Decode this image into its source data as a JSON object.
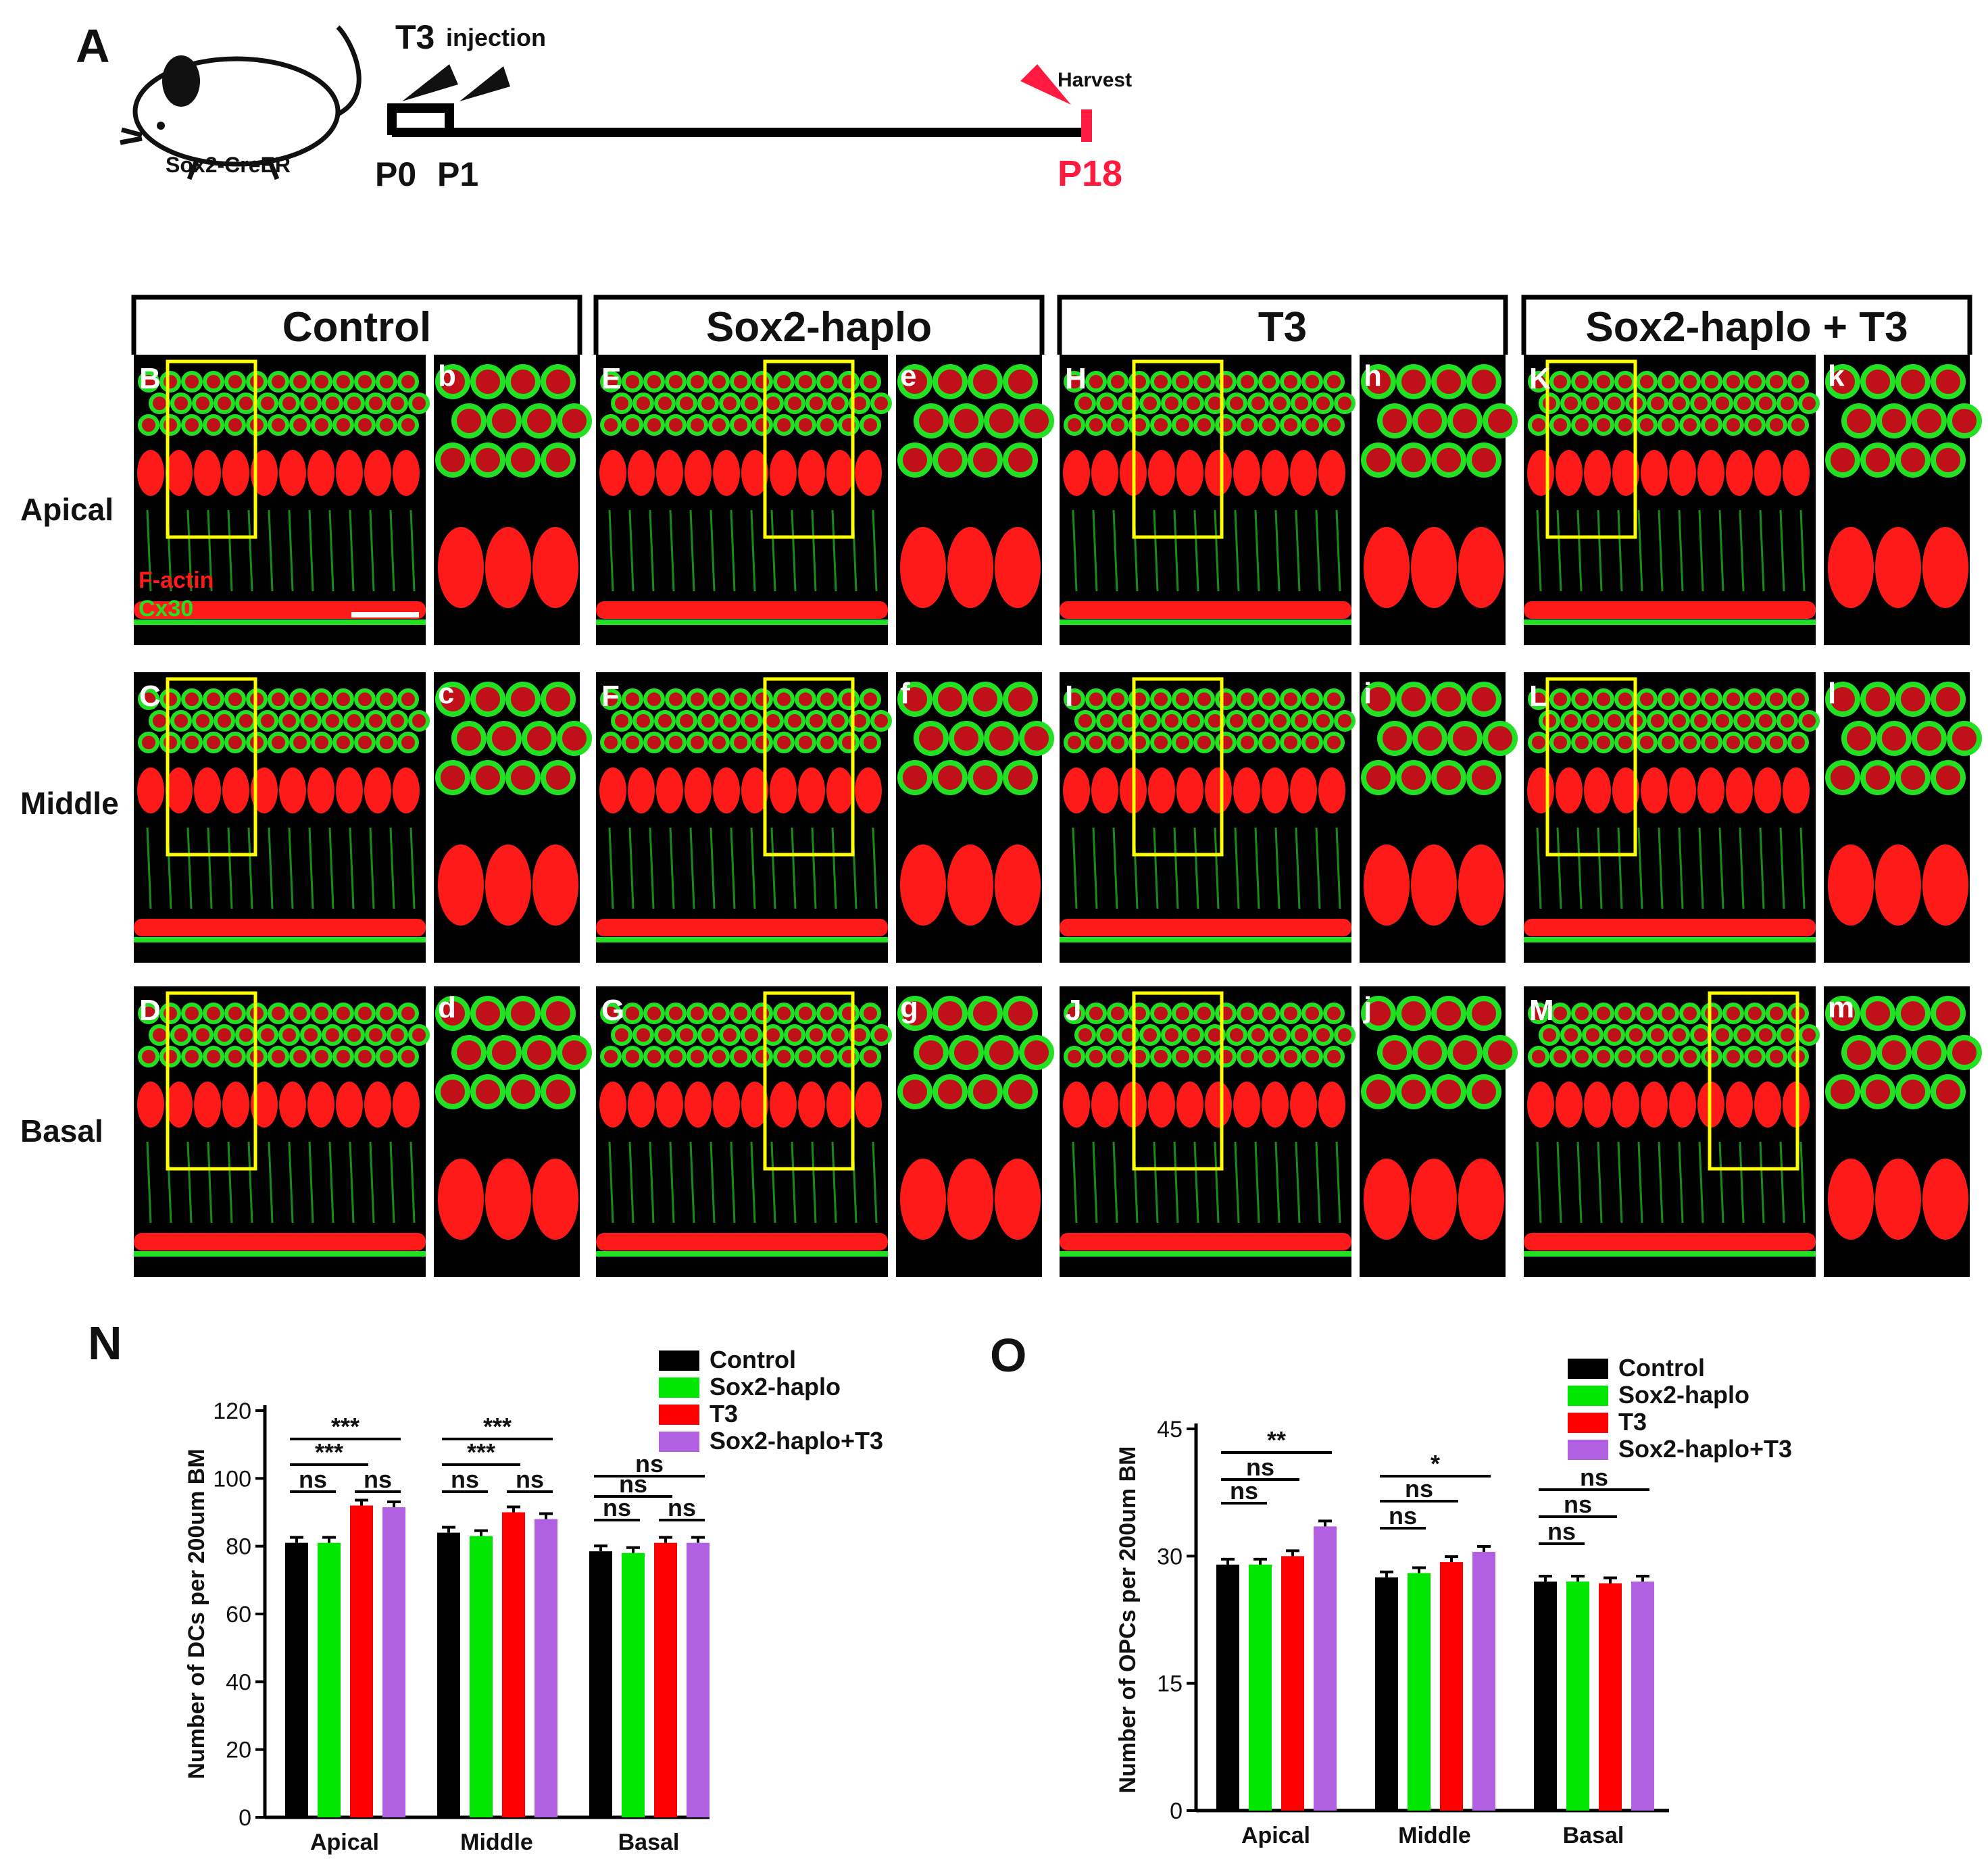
{
  "panel_a": {
    "label": "A",
    "mouse_label": "Sox2-CreER",
    "t3_label": "T3",
    "injection_label": "injection",
    "harvest_label": "Harvest",
    "day_p0": "P0",
    "day_p1": "P1",
    "day_p18": "P18"
  },
  "image_grid": {
    "groups": [
      "Control",
      "Sox2-haplo",
      "T3",
      "Sox2-haplo + T3"
    ],
    "rows": [
      "Apical",
      "Middle",
      "Basal"
    ],
    "main_labels": [
      [
        "B",
        "C",
        "D"
      ],
      [
        "E",
        "F",
        "G"
      ],
      [
        "H",
        "I",
        "J"
      ],
      [
        "K",
        "L",
        "M"
      ]
    ],
    "inset_labels": [
      [
        "b",
        "c",
        "d"
      ],
      [
        "e",
        "f",
        "g"
      ],
      [
        "h",
        "i",
        "j"
      ],
      [
        "k",
        "l",
        "m"
      ]
    ],
    "stain_factin": "F-actin",
    "stain_cx30": "Cx30",
    "colors": {
      "factin": "#ff1a1a",
      "cx30": "#22e022",
      "box": "#ffff00",
      "background": "#000000"
    }
  },
  "chart_data": [
    {
      "panel": "N",
      "type": "bar",
      "categories": [
        "Apical",
        "Middle",
        "Basal"
      ],
      "ylabel": "Number of DCs per 200um BM",
      "ylim": [
        0,
        120
      ],
      "yticks": [
        "0",
        "20",
        "40",
        "60",
        "80",
        "100",
        "120"
      ],
      "series": [
        {
          "name": "Control",
          "color": "#000000",
          "values": [
            81,
            84,
            78.5
          ]
        },
        {
          "name": "Sox2-haplo",
          "color": "#00e600",
          "values": [
            81,
            83,
            78
          ]
        },
        {
          "name": "T3",
          "color": "#ff0000",
          "values": [
            92,
            90,
            81
          ]
        },
        {
          "name": "Sox2-haplo+T3",
          "color": "#b060e0",
          "values": [
            91.5,
            88,
            81
          ]
        }
      ],
      "significance": [
        [
          "***",
          "***",
          "ns",
          "ns"
        ],
        [
          "***",
          "***",
          "ns",
          "ns"
        ],
        [
          "ns",
          "ns",
          "ns",
          "ns"
        ]
      ]
    },
    {
      "panel": "O",
      "type": "bar",
      "categories": [
        "Apical",
        "Middle",
        "Basal"
      ],
      "ylabel": "Number of OPCs per 200um BM",
      "ylim": [
        0,
        45
      ],
      "yticks": [
        "0",
        "15",
        "30",
        "45"
      ],
      "series": [
        {
          "name": "Control",
          "color": "#000000",
          "values": [
            29,
            27.5,
            27
          ]
        },
        {
          "name": "Sox2-haplo",
          "color": "#00e600",
          "values": [
            29,
            28,
            27
          ]
        },
        {
          "name": "T3",
          "color": "#ff0000",
          "values": [
            30,
            29.3,
            26.8
          ]
        },
        {
          "name": "Sox2-haplo+T3",
          "color": "#b060e0",
          "values": [
            33.5,
            30.5,
            27
          ]
        }
      ],
      "significance": [
        [
          "**",
          "ns",
          "ns"
        ],
        [
          "*",
          "ns",
          "ns"
        ],
        [
          "ns",
          "ns",
          "ns"
        ]
      ]
    }
  ]
}
